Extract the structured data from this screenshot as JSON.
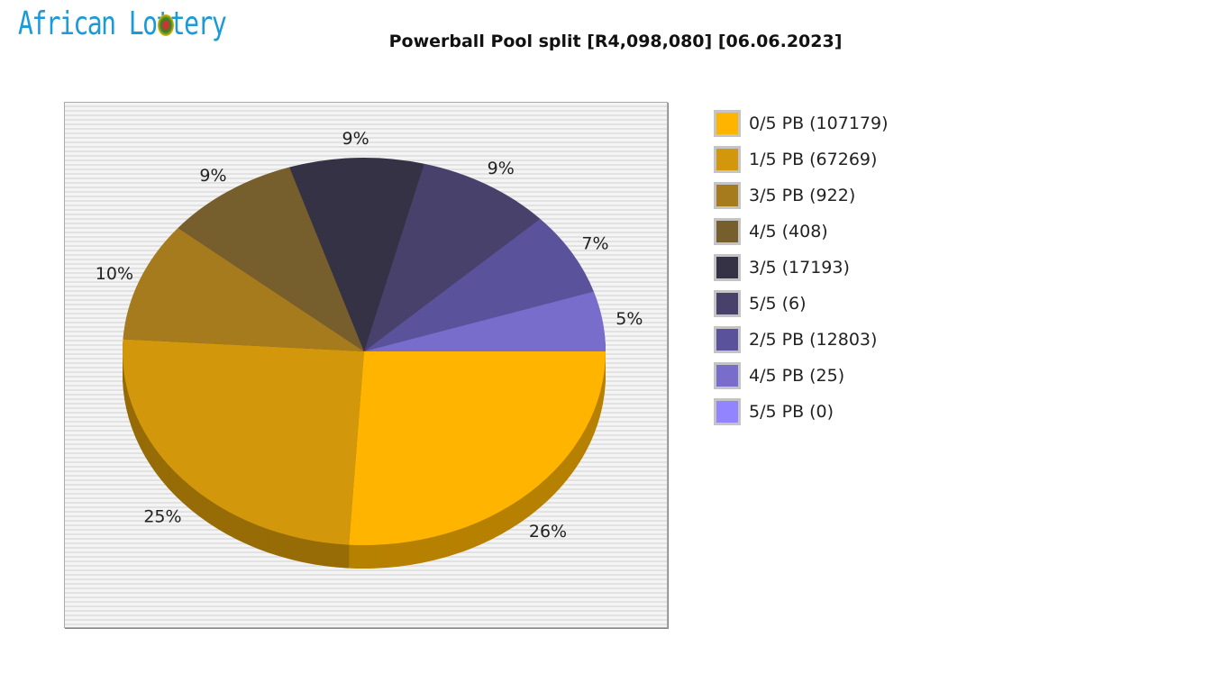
{
  "logo": {
    "text": "African Lottery"
  },
  "title": "Powerball Pool split [R4,098,080] [06.06.2023]",
  "chart_data": {
    "type": "pie",
    "title": "Powerball Pool split [R4,098,080] [06.06.2023]",
    "start_angle": "3 o'clock, clockwise",
    "legend_position": "right",
    "slices": [
      {
        "label": "0/5 PB (107179)",
        "value": 26,
        "data_label": "26%",
        "color": "#ffb400"
      },
      {
        "label": "1/5 PB (67269)",
        "value": 25,
        "data_label": "25%",
        "color": "#d2970b"
      },
      {
        "label": "3/5 PB (922)",
        "value": 10,
        "data_label": "10%",
        "color": "#a67b1d"
      },
      {
        "label": "4/5 (408)",
        "value": 9,
        "data_label": "9%",
        "color": "#775e2d"
      },
      {
        "label": "3/5 (17193)",
        "value": 9,
        "data_label": "9%",
        "color": "#363246"
      },
      {
        "label": "5/5 (6)",
        "value": 9,
        "data_label": "9%",
        "color": "#47416b"
      },
      {
        "label": "2/5 PB (12803)",
        "value": 7,
        "data_label": "7%",
        "color": "#5a529a"
      },
      {
        "label": "4/5 PB (25)",
        "value": 5,
        "data_label": "5%",
        "color": "#786dcb"
      },
      {
        "label": "5/5 PB (0)",
        "value": 0,
        "data_label": "",
        "color": "#9283ff"
      }
    ]
  }
}
